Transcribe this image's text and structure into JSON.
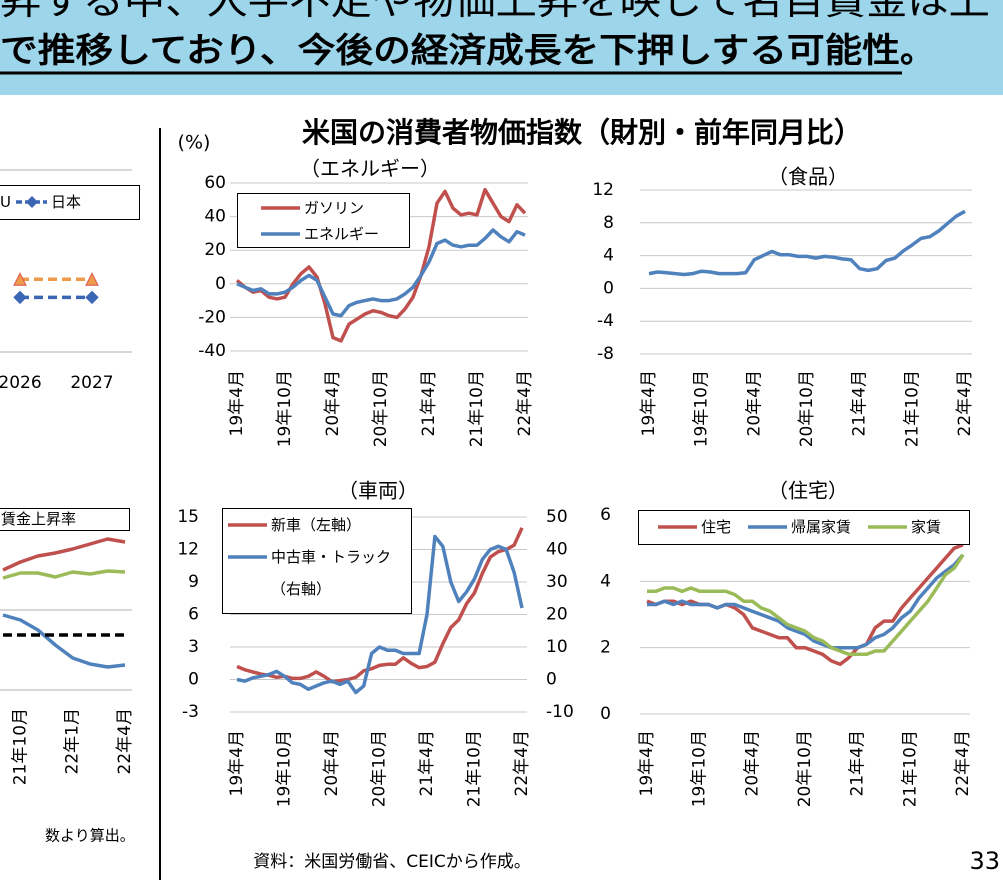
{
  "header": {
    "line1": "昇する中、人手不足や物価上昇を映して名目賃金は上",
    "line2": "で推移しており、今後の経済成長を下押しする可能性",
    "period": "。"
  },
  "panel": {
    "title": "米国の消費者物価指数（財別・前年同月比）",
    "unit": "(%)"
  },
  "footnote_left": "数より算出。",
  "source": "資料：米国労働省、CEICから作成。",
  "page_number": "33",
  "chart_data": [
    {
      "type": "line",
      "title": "（エネルギー）",
      "grid": true,
      "legend": "upper left",
      "categories": [
        "19年4月",
        null,
        null,
        null,
        null,
        null,
        "19年10月",
        null,
        null,
        null,
        null,
        null,
        "20年4月",
        null,
        null,
        null,
        null,
        null,
        "20年10月",
        null,
        null,
        null,
        null,
        null,
        "21年4月",
        null,
        null,
        null,
        null,
        null,
        "21年10月",
        null,
        null,
        null,
        null,
        null,
        "22年4月"
      ],
      "ylim": [
        -40,
        60
      ],
      "yticks": [
        -40,
        -20,
        0,
        20,
        40,
        60
      ],
      "series": [
        {
          "name": "ガソリン",
          "color": "#c0504d",
          "values": [
            2,
            -2,
            -5,
            -4,
            -8,
            -9,
            -8,
            0,
            6,
            10,
            4,
            -12,
            -32,
            -34,
            -24,
            -21,
            -18,
            -16,
            -17,
            -19,
            -20,
            -15,
            -8,
            5,
            22,
            48,
            55,
            45,
            41,
            42,
            41,
            56,
            48,
            40,
            37,
            47,
            42
          ]
        },
        {
          "name": "エネルギー",
          "color": "#4f81bd",
          "values": [
            0,
            -2,
            -4,
            -3,
            -6,
            -6,
            -5,
            -2,
            2,
            5,
            2,
            -8,
            -18,
            -19,
            -13,
            -11,
            -10,
            -9,
            -10,
            -10,
            -9,
            -6,
            -2,
            5,
            13,
            24,
            26,
            23,
            22,
            23,
            23,
            27,
            32,
            28,
            25,
            31,
            29
          ]
        }
      ]
    },
    {
      "type": "line",
      "title": "（食品）",
      "grid": true,
      "categories": [
        "19年4月",
        null,
        null,
        null,
        null,
        null,
        "19年10月",
        null,
        null,
        null,
        null,
        null,
        "20年4月",
        null,
        null,
        null,
        null,
        null,
        "20年10月",
        null,
        null,
        null,
        null,
        null,
        "21年4月",
        null,
        null,
        null,
        null,
        null,
        "21年10月",
        null,
        null,
        null,
        null,
        null,
        "22年4月"
      ],
      "ylim": [
        -8,
        12
      ],
      "yticks": [
        -8,
        -4,
        0,
        4,
        8,
        12
      ],
      "series": [
        {
          "color": "#4f81bd",
          "values": [
            1.8,
            2.0,
            1.9,
            1.8,
            1.7,
            1.8,
            2.1,
            2.0,
            1.8,
            1.8,
            1.8,
            1.9,
            3.5,
            4.0,
            4.5,
            4.1,
            4.1,
            3.9,
            3.9,
            3.7,
            3.9,
            3.8,
            3.6,
            3.5,
            2.4,
            2.2,
            2.4,
            3.4,
            3.7,
            4.6,
            5.3,
            6.1,
            6.3,
            7.0,
            7.9,
            8.8,
            9.4
          ]
        }
      ]
    },
    {
      "type": "line",
      "title": "（車両）",
      "grid": true,
      "legend": "upper left",
      "categories": [
        "19年4月",
        null,
        null,
        null,
        null,
        null,
        "19年10月",
        null,
        null,
        null,
        null,
        null,
        "20年4月",
        null,
        null,
        null,
        null,
        null,
        "20年10月",
        null,
        null,
        null,
        null,
        null,
        "21年4月",
        null,
        null,
        null,
        null,
        null,
        "21年10月",
        null,
        null,
        null,
        null,
        null,
        "22年4月"
      ],
      "ylim": [
        -3,
        15
      ],
      "yticks": [
        -3,
        0,
        3,
        6,
        9,
        12,
        15
      ],
      "y2lim": [
        -10,
        50
      ],
      "y2ticks": [
        -10,
        0,
        10,
        20,
        30,
        40,
        50
      ],
      "series": [
        {
          "name": "新車（左軸）",
          "color": "#c0504d",
          "values": [
            1.2,
            0.9,
            0.7,
            0.5,
            0.4,
            0.2,
            0.3,
            0.1,
            0.1,
            0.3,
            0.7,
            0.3,
            -0.2,
            -0.1,
            0,
            0.2,
            0.8,
            1.0,
            1.3,
            1.4,
            1.4,
            2.0,
            1.5,
            1.1,
            1.2,
            1.6,
            3.3,
            4.8,
            5.5,
            7.0,
            8.0,
            9.8,
            11.3,
            11.8,
            12.0,
            12.4,
            14.0
          ]
        },
        {
          "name": "中古車・トラック（右軸）",
          "color": "#4f81bd",
          "axis": "y2",
          "values": [
            0,
            -0.5,
            0.5,
            1,
            1.5,
            2.5,
            1,
            -1,
            -1.5,
            -3,
            -2,
            -1,
            -0.5,
            -1.5,
            -0.5,
            -4,
            -2,
            8,
            10,
            9,
            9,
            8,
            8,
            8,
            20,
            44,
            41,
            30,
            24,
            27,
            31,
            37,
            40,
            41,
            40,
            33,
            22
          ]
        }
      ]
    },
    {
      "type": "line",
      "title": "（住宅）",
      "grid": true,
      "legend": "upper center",
      "categories": [
        "19年4月",
        null,
        null,
        null,
        null,
        null,
        "19年10月",
        null,
        null,
        null,
        null,
        null,
        "20年4月",
        null,
        null,
        null,
        null,
        null,
        "20年10月",
        null,
        null,
        null,
        null,
        null,
        "21年4月",
        null,
        null,
        null,
        null,
        null,
        "21年10月",
        null,
        null,
        null,
        null,
        null,
        "22年4月"
      ],
      "ylim": [
        0,
        6
      ],
      "yticks": [
        0,
        2,
        4,
        6
      ],
      "series": [
        {
          "name": "住宅",
          "color": "#c0504d",
          "values": [
            3.4,
            3.3,
            3.4,
            3.4,
            3.3,
            3.4,
            3.3,
            3.3,
            3.2,
            3.3,
            3.2,
            3.0,
            2.6,
            2.5,
            2.4,
            2.3,
            2.3,
            2.0,
            2.0,
            1.9,
            1.8,
            1.6,
            1.5,
            1.7,
            2.0,
            2.1,
            2.6,
            2.8,
            2.8,
            3.2,
            3.5,
            3.8,
            4.1,
            4.4,
            4.7,
            5.0,
            5.1
          ]
        },
        {
          "name": "帰属家賃",
          "color": "#4f81bd",
          "values": [
            3.3,
            3.3,
            3.4,
            3.3,
            3.4,
            3.3,
            3.3,
            3.3,
            3.2,
            3.3,
            3.3,
            3.2,
            3.1,
            3.0,
            2.9,
            2.8,
            2.6,
            2.5,
            2.4,
            2.2,
            2.1,
            2.0,
            2.0,
            2.0,
            2.0,
            2.1,
            2.3,
            2.4,
            2.6,
            2.9,
            3.1,
            3.5,
            3.8,
            4.1,
            4.3,
            4.5,
            4.8
          ]
        },
        {
          "name": "家賃",
          "color": "#9bbb59",
          "values": [
            3.7,
            3.7,
            3.8,
            3.8,
            3.7,
            3.8,
            3.7,
            3.7,
            3.7,
            3.7,
            3.6,
            3.4,
            3.4,
            3.2,
            3.1,
            2.9,
            2.7,
            2.6,
            2.5,
            2.3,
            2.2,
            2.0,
            1.9,
            1.8,
            1.8,
            1.8,
            1.9,
            1.9,
            2.2,
            2.5,
            2.8,
            3.1,
            3.4,
            3.8,
            4.2,
            4.4,
            4.8
          ]
        }
      ]
    },
    {
      "type": "line",
      "legend": "upper right",
      "categories": [
        "2026",
        "2027"
      ],
      "ylim": [
        0,
        5
      ],
      "series": [
        {
          "name": "U",
          "color": "#ee9a4d",
          "line_style": "dashed",
          "marker": "triangle",
          "values": [
            2.0,
            2.0
          ]
        },
        {
          "name": "日本",
          "color": "#3a66b4",
          "line_style": "dashed",
          "marker": "diamond",
          "values": [
            1.5,
            1.5
          ]
        }
      ]
    },
    {
      "type": "line",
      "legend": "upper left",
      "categories": [
        null,
        "21年10月",
        null,
        null,
        "22年1月",
        null,
        null,
        "22年4月"
      ],
      "ylim": [
        0,
        10
      ],
      "series": [
        {
          "name": "賃金上昇率",
          "color": "#c0504d",
          "values": [
            6.0,
            6.4,
            6.7,
            6.85,
            7.05,
            7.3,
            7.55,
            7.4
          ]
        },
        {
          "color": "#9bbb59",
          "values": [
            5.6,
            5.85,
            5.85,
            5.65,
            5.9,
            5.8,
            5.95,
            5.9
          ]
        },
        {
          "color": "#4f81bd",
          "values": [
            3.75,
            3.5,
            3.0,
            2.25,
            1.6,
            1.3,
            1.15,
            1.25
          ]
        },
        {
          "color": "#000000",
          "line_style": "dashed",
          "values": [
            2.75,
            2.75,
            2.75,
            2.75,
            2.75,
            2.75,
            2.75,
            2.75
          ]
        }
      ]
    }
  ]
}
